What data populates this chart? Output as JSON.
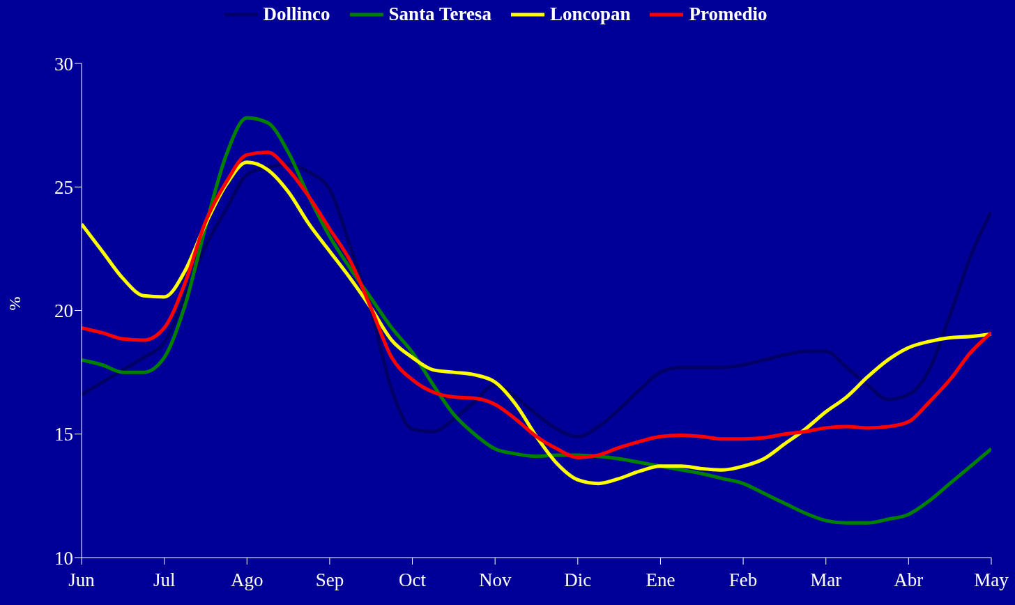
{
  "chart_data": {
    "type": "line",
    "ylabel": "%",
    "categories": [
      "Jun",
      null,
      null,
      null,
      "Jul",
      null,
      null,
      null,
      "Ago",
      null,
      null,
      null,
      "Sep",
      null,
      null,
      null,
      "Oct",
      null,
      null,
      null,
      "Nov",
      null,
      null,
      null,
      "Dic",
      null,
      null,
      null,
      "Ene",
      null,
      null,
      null,
      "Feb",
      null,
      null,
      null,
      "Mar",
      null,
      null,
      null,
      "Abr",
      null,
      null,
      null,
      "May"
    ],
    "ylim": [
      10,
      30
    ],
    "yticks": [
      10,
      15,
      20,
      25,
      30
    ],
    "grid": false,
    "legend": "top",
    "marker": "none",
    "line_style": "solid",
    "series": [
      {
        "name": "Dollinco",
        "color": "#000066",
        "values": [
          16.6,
          17.1,
          17.6,
          18.1,
          18.7,
          20.6,
          22.6,
          24.1,
          25.5,
          25.8,
          25.9,
          25.6,
          24.9,
          22.6,
          20.0,
          16.8,
          15.2,
          15.1,
          15.6,
          16.3,
          17.0,
          16.5,
          15.8,
          15.2,
          14.9,
          15.3,
          16.0,
          16.8,
          17.5,
          17.7,
          17.7,
          17.7,
          17.8,
          18.0,
          18.2,
          18.35,
          18.35,
          17.7,
          17.0,
          16.4,
          16.6,
          17.6,
          19.8,
          22.2,
          24.0
        ]
      },
      {
        "name": "Santa Teresa",
        "color": "#008000",
        "values": [
          18.0,
          17.8,
          17.5,
          17.5,
          18.1,
          20.2,
          23.4,
          26.3,
          27.8,
          27.6,
          26.4,
          24.6,
          23.0,
          21.7,
          20.5,
          19.3,
          18.3,
          17.0,
          15.8,
          15.0,
          14.4,
          14.2,
          14.1,
          14.15,
          14.15,
          14.1,
          14.0,
          13.85,
          13.7,
          13.55,
          13.4,
          13.2,
          13.0,
          12.6,
          12.2,
          11.8,
          11.5,
          11.4,
          11.4,
          11.55,
          11.75,
          12.3,
          13.0,
          13.7,
          14.4
        ]
      },
      {
        "name": "Loncopan",
        "color": "#ffff00",
        "values": [
          23.5,
          22.4,
          21.3,
          20.6,
          20.55,
          21.6,
          23.5,
          25.1,
          26.0,
          25.7,
          24.8,
          23.5,
          22.4,
          21.3,
          20.1,
          18.8,
          18.1,
          17.6,
          17.5,
          17.4,
          17.1,
          16.2,
          14.9,
          13.8,
          13.15,
          13.0,
          13.2,
          13.5,
          13.7,
          13.7,
          13.6,
          13.55,
          13.7,
          14.0,
          14.6,
          15.2,
          15.9,
          16.5,
          17.3,
          18.0,
          18.5,
          18.75,
          18.9,
          18.95,
          19.05
        ]
      },
      {
        "name": "Promedio",
        "color": "#ff0000",
        "values": [
          19.3,
          19.1,
          18.85,
          18.8,
          19.3,
          21.1,
          23.6,
          25.2,
          26.3,
          26.4,
          25.7,
          24.6,
          23.3,
          22.0,
          20.1,
          18.1,
          17.2,
          16.7,
          16.5,
          16.45,
          16.2,
          15.6,
          14.9,
          14.4,
          14.05,
          14.15,
          14.45,
          14.7,
          14.9,
          14.95,
          14.9,
          14.8,
          14.8,
          14.85,
          15.0,
          15.1,
          15.25,
          15.3,
          15.25,
          15.3,
          15.5,
          16.3,
          17.2,
          18.3,
          19.1
        ]
      }
    ]
  }
}
